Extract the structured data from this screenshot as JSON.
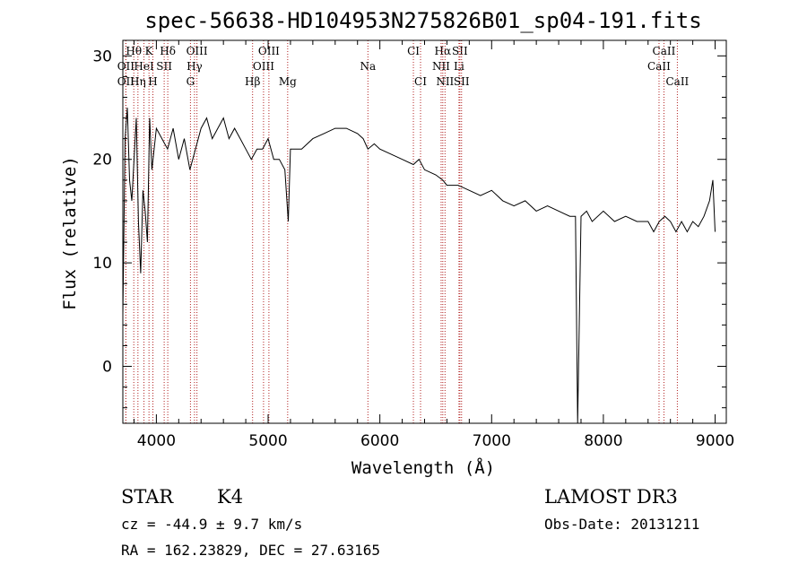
{
  "chart_data": {
    "type": "line",
    "title": "spec-56638-HD104953N275826B01_sp04-191.fits",
    "xlabel": "Wavelength (Å)",
    "ylabel": "Flux (relative)",
    "xlim": [
      3700,
      9100
    ],
    "ylim": [
      -5.5,
      31.5
    ],
    "xticks": [
      4000,
      5000,
      6000,
      7000,
      8000,
      9000
    ],
    "yticks": [
      0,
      10,
      20,
      30
    ],
    "grid": false,
    "series": [
      {
        "x": [
          3700,
          3720,
          3740,
          3760,
          3780,
          3800,
          3820,
          3840,
          3860,
          3880,
          3900,
          3920,
          3940,
          3960,
          3980,
          4000,
          4050,
          4100,
          4150,
          4200,
          4250,
          4300,
          4350,
          4400,
          4450,
          4500,
          4550,
          4600,
          4650,
          4700,
          4750,
          4800,
          4850,
          4900,
          4950,
          5000,
          5050,
          5100,
          5150,
          5180,
          5200,
          5250,
          5300,
          5400,
          5500,
          5600,
          5700,
          5800,
          5850,
          5893,
          5950,
          6000,
          6100,
          6200,
          6300,
          6350,
          6400,
          6500,
          6563,
          6600,
          6700,
          6800,
          6900,
          7000,
          7100,
          7200,
          7300,
          7400,
          7500,
          7600,
          7700,
          7750,
          7770,
          7800,
          7850,
          7900,
          8000,
          8100,
          8200,
          8300,
          8400,
          8450,
          8500,
          8550,
          8600,
          8650,
          8700,
          8750,
          8800,
          8850,
          8900,
          8950,
          8980,
          9000
        ],
        "y": [
          5,
          22,
          25,
          18,
          16,
          20,
          24,
          14,
          9,
          17,
          15,
          12,
          24,
          19,
          21,
          23,
          22,
          21,
          23,
          20,
          22,
          19,
          21,
          23,
          24,
          22,
          23,
          24,
          22,
          23,
          22,
          21,
          20,
          21,
          21,
          22,
          20,
          20,
          19,
          14,
          21,
          21,
          21,
          22,
          22.5,
          23,
          23,
          22.5,
          22,
          21,
          21.5,
          21,
          20.5,
          20,
          19.5,
          20,
          19,
          18.5,
          18,
          17.5,
          17.5,
          17,
          16.5,
          17,
          16,
          15.5,
          16,
          15,
          15.5,
          15,
          14.5,
          14.5,
          -5.5,
          14.5,
          15,
          14,
          15,
          14,
          14.5,
          14,
          14,
          13,
          14,
          14.5,
          14,
          13,
          14,
          13,
          14,
          13.5,
          14.5,
          16,
          18,
          13
        ]
      }
    ],
    "lines": [
      {
        "label": "Hθ",
        "x": 3798,
        "row": 0
      },
      {
        "label": "K",
        "x": 3934,
        "row": 0
      },
      {
        "label": "Hδ",
        "x": 4102,
        "row": 0
      },
      {
        "label": "OII",
        "x": 3727,
        "row": 1
      },
      {
        "label": "HeI",
        "x": 3889,
        "row": 1
      },
      {
        "label": "SII",
        "x": 4070,
        "row": 1
      },
      {
        "label": "OII",
        "x": 3727,
        "row": 2
      },
      {
        "label": "Hη",
        "x": 3835,
        "row": 2
      },
      {
        "label": "H",
        "x": 3969,
        "row": 2
      },
      {
        "label": "OIII",
        "x": 4363,
        "row": 0
      },
      {
        "label": "Hγ",
        "x": 4341,
        "row": 1
      },
      {
        "label": "G",
        "x": 4305,
        "row": 2
      },
      {
        "label": "OIII",
        "x": 5007,
        "row": 0
      },
      {
        "label": "OIII",
        "x": 4959,
        "row": 1
      },
      {
        "label": "Hβ",
        "x": 4861,
        "row": 2
      },
      {
        "label": "Mg",
        "x": 5175,
        "row": 2
      },
      {
        "label": "Na",
        "x": 5893,
        "row": 1
      },
      {
        "label": "CI",
        "x": 6300,
        "row": 0
      },
      {
        "label": "CI",
        "x": 6364,
        "row": 2
      },
      {
        "label": "Hα",
        "x": 6563,
        "row": 0
      },
      {
        "label": "SII",
        "x": 6716,
        "row": 0
      },
      {
        "label": "NII",
        "x": 6548,
        "row": 1
      },
      {
        "label": "Li",
        "x": 6708,
        "row": 1
      },
      {
        "label": "NII",
        "x": 6583,
        "row": 2
      },
      {
        "label": "SII",
        "x": 6731,
        "row": 2
      },
      {
        "label": "CaII",
        "x": 8542,
        "row": 0
      },
      {
        "label": "CaII",
        "x": 8498,
        "row": 1
      },
      {
        "label": "CaII",
        "x": 8662,
        "row": 2
      }
    ]
  },
  "info": {
    "class": "STAR",
    "subclass": "K4",
    "survey": "LAMOST DR3",
    "cz": "cz = -44.9 ± 9.7 km/s",
    "obs_date": "Obs-Date: 20131211",
    "coords": "RA = 162.23829, DEC =  27.63165"
  }
}
